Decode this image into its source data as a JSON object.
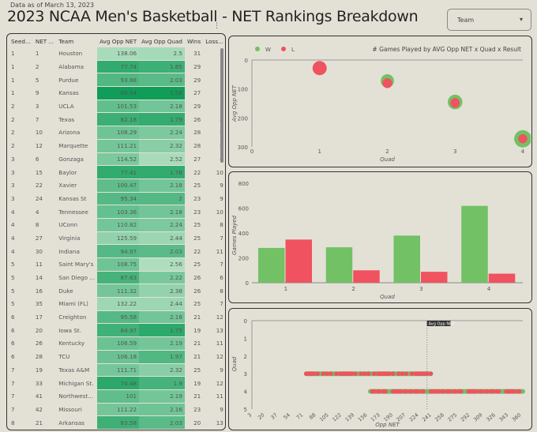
{
  "header": {
    "as_of": "Data as of March 13, 2023",
    "title": "2023 NCAA Men's Basketball - NET Rankings Breakdown",
    "more_icon": "vertical-ellipsis"
  },
  "filter": {
    "label": "Team",
    "icon": "caret-down"
  },
  "table": {
    "columns": [
      "Seed...",
      "NET ...",
      "Team",
      "Avg Opp NET",
      "Avg Opp Quad",
      "Wins",
      "Loss..."
    ],
    "rows": [
      [
        "1",
        "1",
        "Houston",
        "138.06",
        "2.5",
        "31",
        "3"
      ],
      [
        "1",
        "2",
        "Alabama",
        "77.74",
        "1.85",
        "29",
        "5"
      ],
      [
        "1",
        "5",
        "Purdue",
        "93.88",
        "2.03",
        "29",
        "5"
      ],
      [
        "1",
        "9",
        "Kansas",
        "60.44",
        "1.56",
        "27",
        "7"
      ],
      [
        "2",
        "3",
        "UCLA",
        "101.53",
        "2.18",
        "29",
        "5"
      ],
      [
        "2",
        "7",
        "Texas",
        "82.18",
        "1.79",
        "26",
        "8"
      ],
      [
        "2",
        "10",
        "Arizona",
        "108.29",
        "2.24",
        "28",
        "6"
      ],
      [
        "2",
        "12",
        "Marquette",
        "111.21",
        "2.32",
        "28",
        "6"
      ],
      [
        "3",
        "6",
        "Gonzaga",
        "114.52",
        "2.52",
        "27",
        "4"
      ],
      [
        "3",
        "15",
        "Baylor",
        "77.41",
        "1.78",
        "22",
        "10"
      ],
      [
        "3",
        "22",
        "Xavier",
        "100.47",
        "2.18",
        "25",
        "9"
      ],
      [
        "3",
        "24",
        "Kansas St",
        "95.34",
        "2",
        "23",
        "9"
      ],
      [
        "4",
        "4",
        "Tennessee",
        "103.36",
        "2.18",
        "23",
        "10"
      ],
      [
        "4",
        "8",
        "UConn",
        "110.82",
        "2.24",
        "25",
        "8"
      ],
      [
        "4",
        "27",
        "Virginia",
        "125.59",
        "2.44",
        "25",
        "7"
      ],
      [
        "4",
        "30",
        "Indiana",
        "94.97",
        "2.03",
        "22",
        "11"
      ],
      [
        "5",
        "11",
        "Saint Mary's",
        "108.75",
        "2.56",
        "25",
        "7"
      ],
      [
        "5",
        "14",
        "San Diego ...",
        "87.63",
        "2.22",
        "26",
        "6"
      ],
      [
        "5",
        "16",
        "Duke",
        "111.32",
        "2.38",
        "26",
        "8"
      ],
      [
        "5",
        "35",
        "Miami (FL)",
        "132.22",
        "2.44",
        "25",
        "7"
      ],
      [
        "6",
        "17",
        "Creighton",
        "95.58",
        "2.18",
        "21",
        "12"
      ],
      [
        "6",
        "20",
        "Iowa St.",
        "84.97",
        "1.75",
        "19",
        "13"
      ],
      [
        "6",
        "26",
        "Kentucky",
        "106.59",
        "2.19",
        "21",
        "11"
      ],
      [
        "6",
        "28",
        "TCU",
        "106.18",
        "1.97",
        "21",
        "12"
      ],
      [
        "7",
        "19",
        "Texas A&M",
        "111.71",
        "2.32",
        "25",
        "9"
      ],
      [
        "7",
        "33",
        "Michigan St.",
        "74.48",
        "1.9",
        "19",
        "12"
      ],
      [
        "7",
        "41",
        "Northwest...",
        "101",
        "2.19",
        "21",
        "11"
      ],
      [
        "7",
        "42",
        "Missouri",
        "111.22",
        "2.16",
        "23",
        "9"
      ],
      [
        "8",
        "21",
        "Arkansas",
        "83.58",
        "2.03",
        "20",
        "13"
      ]
    ],
    "scale_colors": {
      "dark": "#0f9d58",
      "light": "#b7e1c4"
    }
  },
  "colors": {
    "W": "#72c165",
    "L": "#f0525f"
  },
  "chart_data": [
    {
      "type": "scatter",
      "title": "# Games Played by AVG Opp NET x Quad x Result",
      "xlabel": "Quad",
      "ylabel": "Avg Opp NET",
      "xlim": [
        0,
        4
      ],
      "ylim": [
        0,
        300
      ],
      "y_reversed": true,
      "xticks": [
        "0",
        "1",
        "2",
        "3",
        "4"
      ],
      "yticks": [
        "0",
        "100",
        "200",
        "300"
      ],
      "legend": [
        "W",
        "L"
      ],
      "legend_position": "top-left",
      "series": [
        {
          "name": "W",
          "points": [
            [
              1,
              28,
              280
            ],
            [
              2,
              72,
              285
            ],
            [
              3,
              145,
              379
            ],
            [
              4,
              272,
              618
            ]
          ]
        },
        {
          "name": "L",
          "points": [
            [
              1,
              28,
              347
            ],
            [
              2,
              80,
              100
            ],
            [
              3,
              148,
              88
            ],
            [
              4,
              272,
              73
            ]
          ]
        }
      ]
    },
    {
      "type": "bar",
      "xlabel": "Quad",
      "ylabel": "Games Played",
      "categories": [
        "1",
        "2",
        "3",
        "4"
      ],
      "ylim": [
        0,
        800
      ],
      "yticks": [
        "0",
        "200",
        "400",
        "600",
        "800"
      ],
      "series": [
        {
          "name": "W",
          "values": [
            280,
            285,
            379,
            618
          ]
        },
        {
          "name": "L",
          "values": [
            347,
            100,
            88,
            73
          ]
        }
      ]
    },
    {
      "type": "scatter",
      "xlabel": "Opp NET",
      "ylabel": "Quad",
      "ylim": [
        0,
        5
      ],
      "yticks": [
        "0",
        "1",
        "2",
        "3",
        "4",
        "5"
      ],
      "xticks": [
        "3",
        "20",
        "37",
        "54",
        "71",
        "88",
        "105",
        "122",
        "139",
        "156",
        "173",
        "190",
        "207",
        "224",
        "241",
        "258",
        "275",
        "292",
        "309",
        "326",
        "343",
        "360"
      ],
      "reference_line": {
        "label": "Avg Opp NET",
        "value": 235
      },
      "strips": [
        {
          "quad": 3,
          "range": [
            75,
            240
          ]
        },
        {
          "quad": 4,
          "range": [
            160,
            362
          ]
        }
      ]
    }
  ]
}
